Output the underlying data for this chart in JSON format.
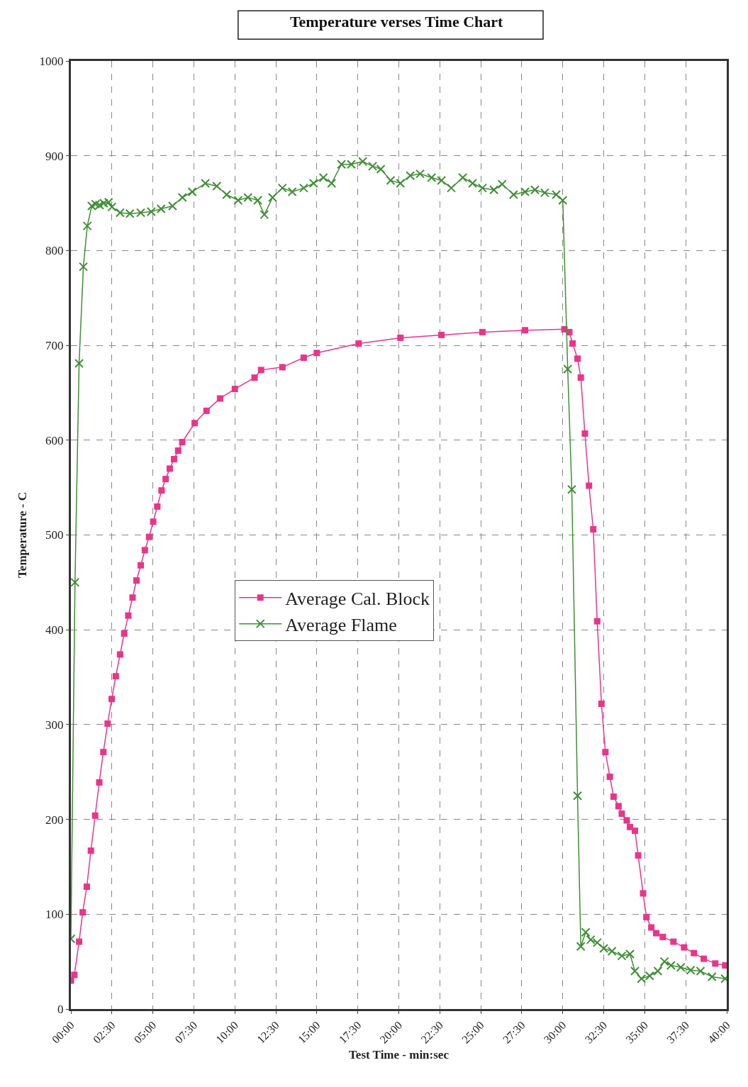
{
  "chart_data": {
    "type": "line",
    "title": "Temperature verses Time Chart",
    "xlabel": "Test Time - min:sec",
    "ylabel": "Temperature - C",
    "xlim": [
      0,
      40
    ],
    "ylim": [
      0,
      1000
    ],
    "xticks": [
      {
        "value": 0,
        "label": "00:00"
      },
      {
        "value": 2.5,
        "label": "02:30"
      },
      {
        "value": 5,
        "label": "05:00"
      },
      {
        "value": 7.5,
        "label": "07:30"
      },
      {
        "value": 10,
        "label": "10:00"
      },
      {
        "value": 12.5,
        "label": "12:30"
      },
      {
        "value": 15,
        "label": "15:00"
      },
      {
        "value": 17.5,
        "label": "17:30"
      },
      {
        "value": 20,
        "label": "20:00"
      },
      {
        "value": 22.5,
        "label": "22:30"
      },
      {
        "value": 25,
        "label": "25:00"
      },
      {
        "value": 27.5,
        "label": "27:30"
      },
      {
        "value": 30,
        "label": "30:00"
      },
      {
        "value": 32.5,
        "label": "32:30"
      },
      {
        "value": 35,
        "label": "35:00"
      },
      {
        "value": 37.5,
        "label": "37:30"
      },
      {
        "value": 40,
        "label": "40:00"
      }
    ],
    "yticks": [
      0,
      100,
      200,
      300,
      400,
      500,
      600,
      700,
      800,
      900,
      1000
    ],
    "grid": true,
    "legend": "center",
    "series": [
      {
        "name": "Average Cal. Block",
        "color": "#e8358a",
        "marker": "square",
        "x": [
          0,
          0.21,
          0.5,
          0.72,
          0.97,
          1.22,
          1.48,
          1.73,
          1.98,
          2.24,
          2.49,
          2.74,
          3.0,
          3.25,
          3.5,
          3.76,
          4.0,
          4.26,
          4.51,
          4.77,
          5.02,
          5.27,
          5.53,
          5.78,
          6.03,
          6.29,
          6.54,
          6.79,
          7.55,
          8.27,
          9.1,
          10.0,
          11.2,
          11.6,
          12.9,
          14.2,
          15.0,
          17.55,
          20.1,
          22.6,
          25.1,
          27.7,
          30.1,
          30.4,
          30.6,
          30.9,
          31.1,
          31.35,
          31.6,
          31.86,
          32.1,
          32.36,
          32.6,
          32.87,
          33.1,
          33.4,
          33.6,
          33.9,
          34.1,
          34.4,
          34.6,
          34.9,
          35.1,
          35.4,
          35.7,
          36.1,
          36.75,
          37.4,
          38.0,
          38.6,
          39.3,
          39.9
        ],
        "values": [
          30,
          36,
          71,
          102,
          129,
          167,
          204,
          239,
          271,
          301,
          327,
          351,
          374,
          396,
          415,
          434,
          452,
          468,
          484,
          498,
          514,
          530,
          547,
          559,
          570,
          580,
          589,
          598,
          618,
          631,
          644,
          654,
          666,
          674,
          677,
          687,
          692,
          702,
          708,
          711,
          714,
          716,
          717,
          714,
          702,
          686,
          666,
          607,
          552,
          506,
          409,
          322,
          271,
          245,
          224,
          214,
          206,
          199,
          192,
          188,
          162,
          122,
          97,
          86,
          80,
          76,
          71,
          65,
          59,
          53,
          48,
          46
        ]
      },
      {
        "name": "Average Flame",
        "color": "#3f8f35",
        "marker": "cross",
        "x": [
          0,
          0.25,
          0.5,
          0.76,
          1.0,
          1.27,
          1.5,
          1.75,
          2.0,
          2.3,
          2.5,
          3.0,
          3.6,
          4.26,
          4.9,
          5.5,
          6.2,
          6.8,
          7.4,
          8.2,
          8.9,
          9.5,
          10.2,
          10.8,
          11.4,
          11.8,
          12.3,
          12.9,
          13.5,
          14.2,
          14.8,
          15.4,
          15.9,
          16.5,
          17.1,
          17.8,
          18.4,
          18.9,
          19.5,
          20.1,
          20.7,
          21.3,
          22.0,
          22.6,
          23.2,
          23.9,
          24.5,
          25.1,
          25.8,
          26.3,
          27.0,
          27.7,
          28.3,
          28.9,
          29.6,
          30.0,
          30.3,
          30.55,
          30.9,
          31.1,
          31.4,
          31.7,
          32.1,
          32.5,
          33.0,
          33.6,
          34.1,
          34.4,
          34.8,
          35.3,
          35.8,
          36.2,
          36.6,
          37.2,
          37.8,
          38.4,
          39.1,
          39.9
        ],
        "values": [
          74,
          450,
          681,
          783,
          826,
          847,
          849,
          848,
          850,
          851,
          846,
          840,
          839,
          840,
          841,
          844,
          847,
          856,
          862,
          871,
          868,
          859,
          853,
          856,
          853,
          838,
          856,
          866,
          862,
          866,
          871,
          877,
          871,
          891,
          891,
          894,
          889,
          886,
          874,
          871,
          879,
          881,
          877,
          874,
          866,
          877,
          871,
          866,
          864,
          870,
          859,
          862,
          864,
          861,
          859,
          853,
          675,
          548,
          225,
          66,
          81,
          73,
          70,
          64,
          61,
          56,
          58,
          40,
          32,
          35,
          40,
          50,
          46,
          44,
          41,
          40,
          34,
          32
        ]
      }
    ]
  }
}
